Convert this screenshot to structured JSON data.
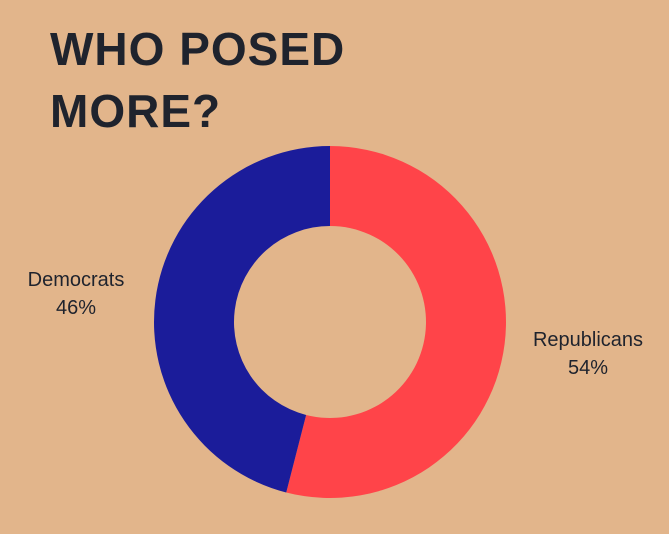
{
  "title_lines": [
    "WHO POSED",
    "MORE?"
  ],
  "chart_data": {
    "type": "pie",
    "title": "WHO POSED MORE?",
    "donut": true,
    "slices": [
      {
        "name": "Republicans",
        "value": 54,
        "value_label": "54%",
        "color": "#ff4449"
      },
      {
        "name": "Democrats",
        "value": 46,
        "value_label": "46%",
        "color": "#1b1c9a"
      }
    ],
    "start_angle_deg": 0,
    "direction": "clockwise",
    "background_color": "#e2b58b"
  }
}
